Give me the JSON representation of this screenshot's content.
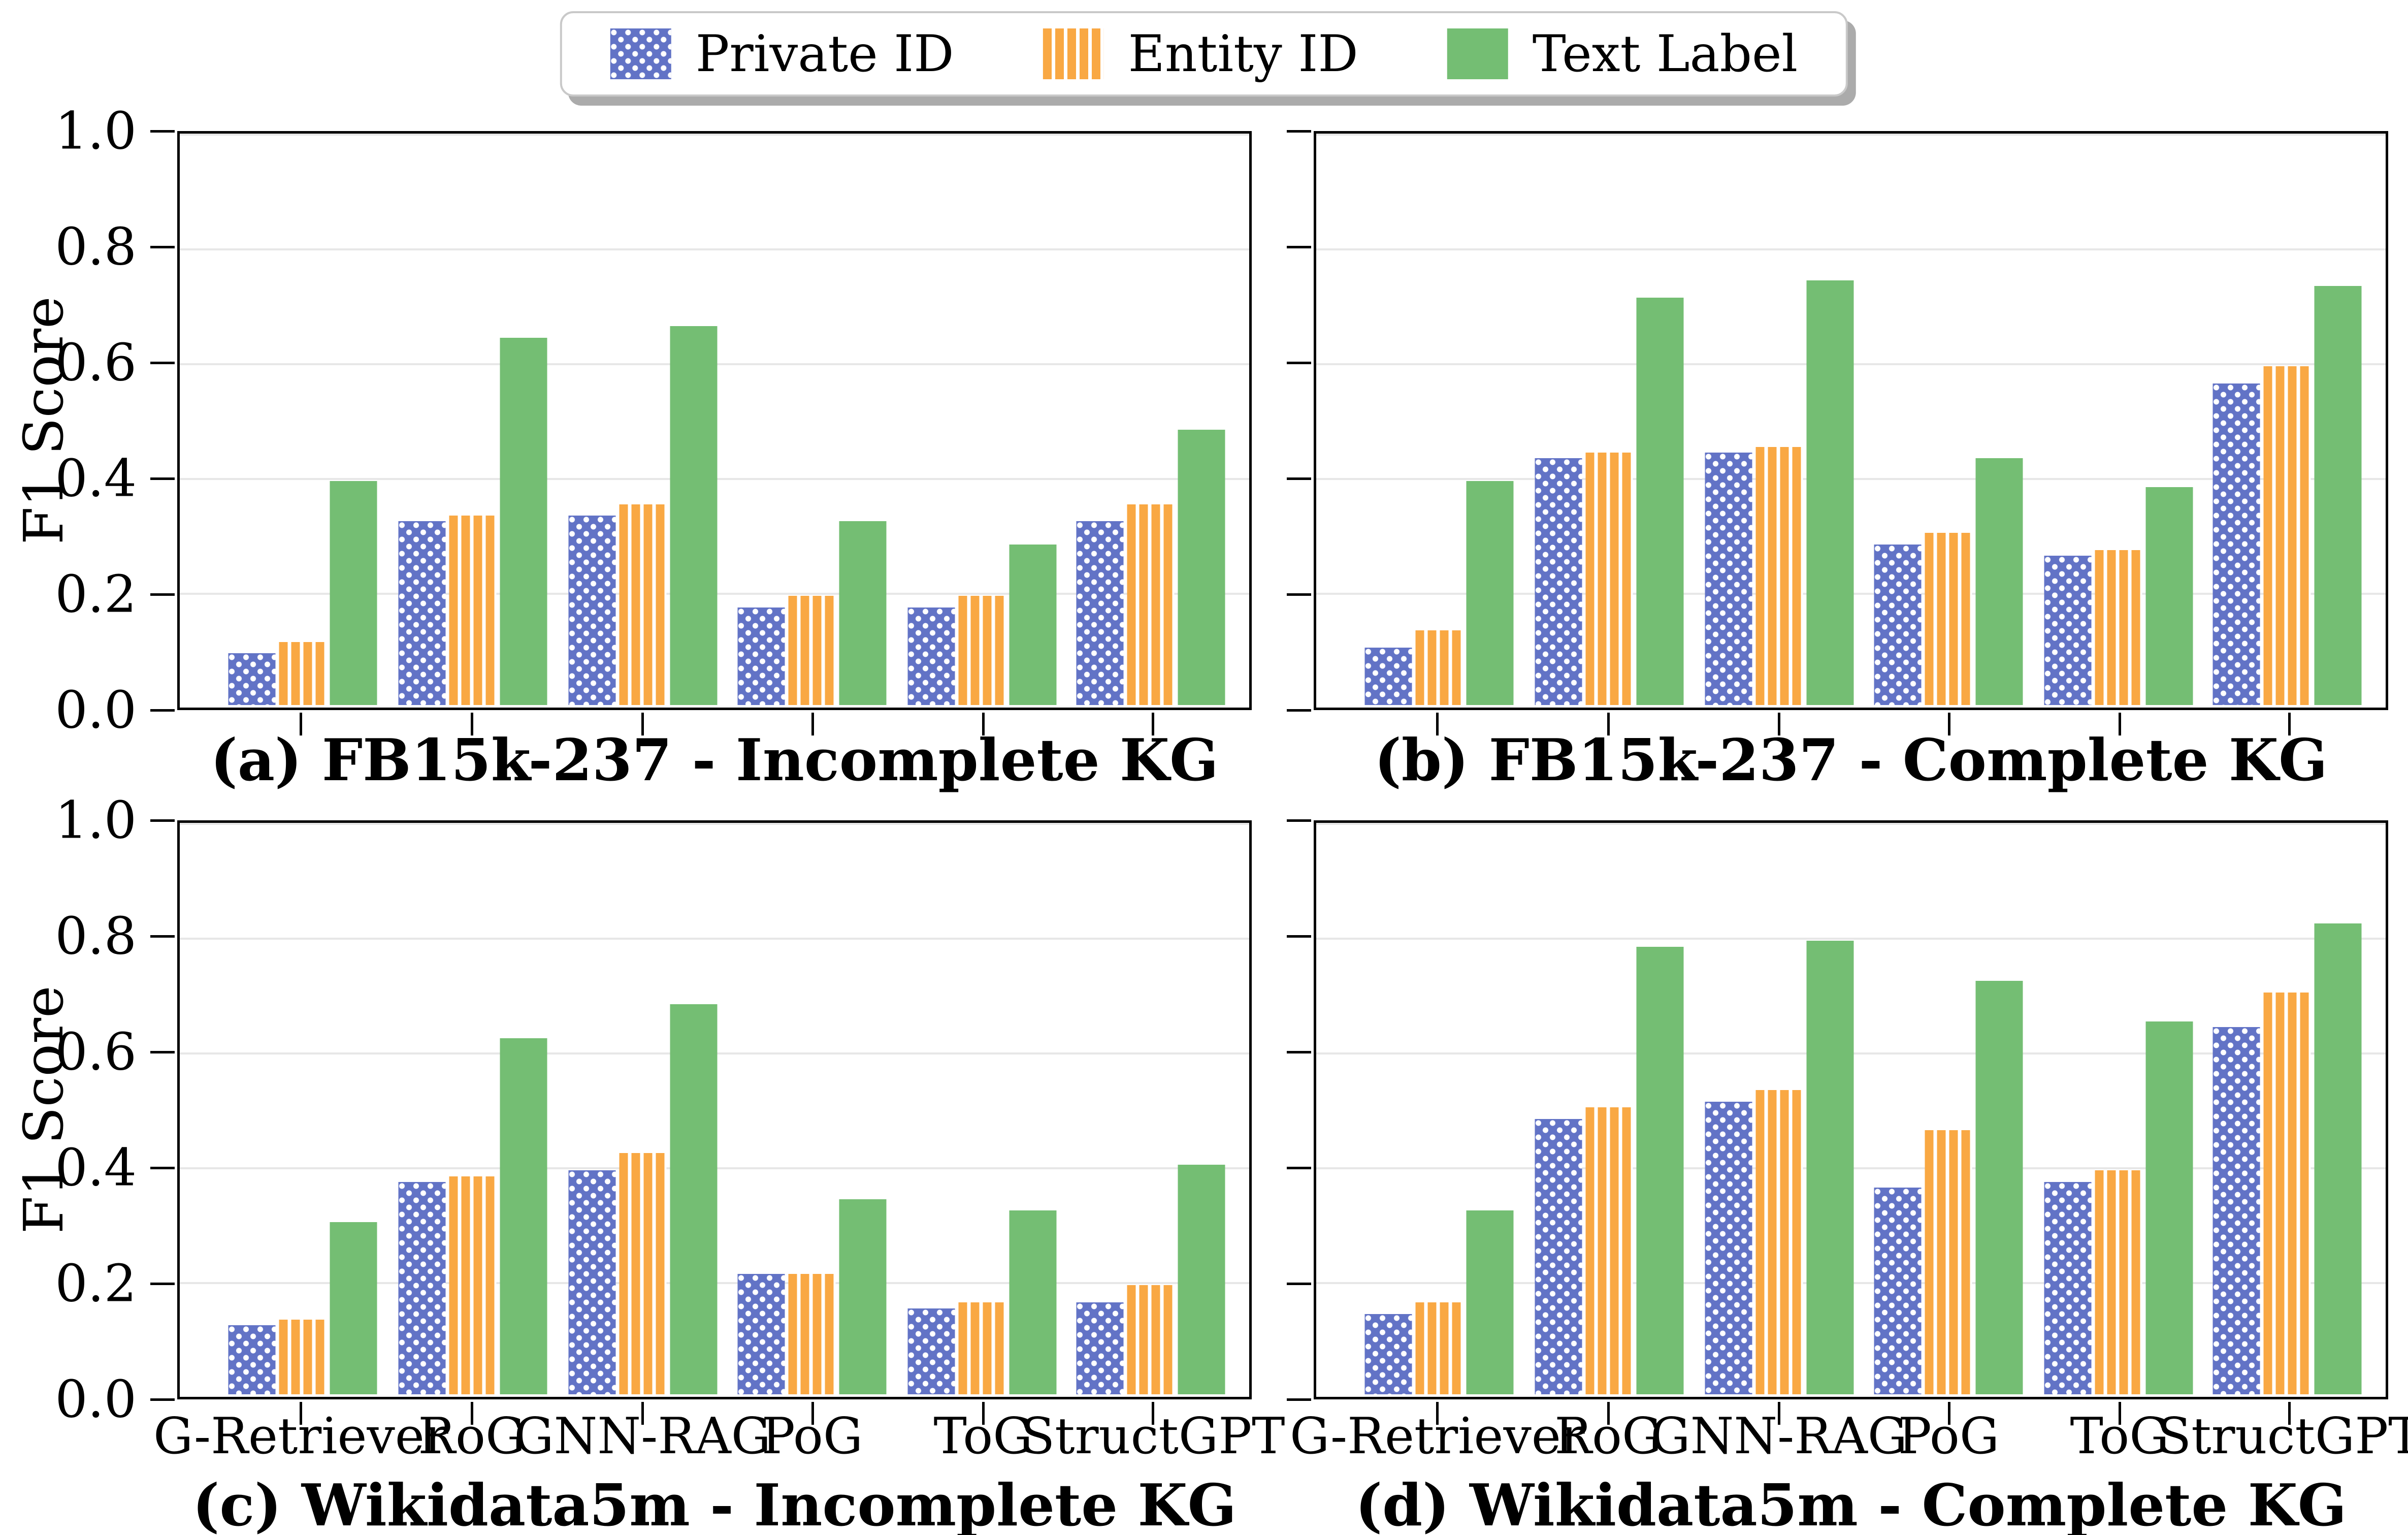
{
  "legend": {
    "position": "top-center",
    "items": [
      {
        "label": "Private ID",
        "series": "private_id",
        "swatch": "blue-dotted-swatch"
      },
      {
        "label": "Entity ID",
        "series": "entity_id",
        "swatch": "orange-striped-swatch"
      },
      {
        "label": "Text Label",
        "series": "text_label",
        "swatch": "green-solid-swatch"
      }
    ]
  },
  "colors": {
    "private_id": "#6273C6",
    "entity_id": "#F9A843",
    "text_label": "#74BE73",
    "gridline": "#E7E7E7",
    "axis": "#000000",
    "legend_border": "#C9C9C9"
  },
  "axes": {
    "ylabel": "F1 Score",
    "yticks": [
      "1.0",
      "0.8",
      "0.6",
      "0.4",
      "0.2",
      "0.0"
    ],
    "ylim": [
      0.0,
      1.0
    ],
    "grid": "horizontal"
  },
  "chart_data": [
    {
      "id": "a",
      "type": "bar",
      "title": "(a) FB15k-237 - Incomplete KG",
      "categories": [
        "G-Retriever",
        "RoG",
        "GNN-RAG",
        "PoG",
        "ToG",
        "StructGPT"
      ],
      "series": [
        {
          "name": "Private ID",
          "values": [
            0.09,
            0.32,
            0.33,
            0.17,
            0.17,
            0.32
          ]
        },
        {
          "name": "Entity ID",
          "values": [
            0.11,
            0.33,
            0.35,
            0.19,
            0.19,
            0.35
          ]
        },
        {
          "name": "Text Label",
          "values": [
            0.39,
            0.64,
            0.66,
            0.32,
            0.28,
            0.48
          ]
        }
      ],
      "ylabel": "F1 Score",
      "ylim": [
        0.0,
        1.0
      ],
      "show_xticklabels": false,
      "show_yticklabels": true
    },
    {
      "id": "b",
      "type": "bar",
      "title": "(b) FB15k-237 - Complete KG",
      "categories": [
        "G-Retriever",
        "RoG",
        "GNN-RAG",
        "PoG",
        "ToG",
        "StructGPT"
      ],
      "series": [
        {
          "name": "Private ID",
          "values": [
            0.1,
            0.43,
            0.44,
            0.28,
            0.26,
            0.56
          ]
        },
        {
          "name": "Entity ID",
          "values": [
            0.13,
            0.44,
            0.45,
            0.3,
            0.27,
            0.59
          ]
        },
        {
          "name": "Text Label",
          "values": [
            0.39,
            0.71,
            0.74,
            0.43,
            0.38,
            0.73
          ]
        }
      ],
      "ylabel": "",
      "ylim": [
        0.0,
        1.0
      ],
      "show_xticklabels": false,
      "show_yticklabels": false
    },
    {
      "id": "c",
      "type": "bar",
      "title": "(c) Wikidata5m - Incomplete KG",
      "categories": [
        "G-Retriever",
        "RoG",
        "GNN-RAG",
        "PoG",
        "ToG",
        "StructGPT"
      ],
      "series": [
        {
          "name": "Private ID",
          "values": [
            0.12,
            0.37,
            0.39,
            0.21,
            0.15,
            0.16
          ]
        },
        {
          "name": "Entity ID",
          "values": [
            0.13,
            0.38,
            0.42,
            0.21,
            0.16,
            0.19
          ]
        },
        {
          "name": "Text Label",
          "values": [
            0.3,
            0.62,
            0.68,
            0.34,
            0.32,
            0.4
          ]
        }
      ],
      "ylabel": "F1 Score",
      "ylim": [
        0.0,
        1.0
      ],
      "show_xticklabels": true,
      "show_yticklabels": true
    },
    {
      "id": "d",
      "type": "bar",
      "title": "(d) Wikidata5m - Complete KG",
      "categories": [
        "G-Retriever",
        "RoG",
        "GNN-RAG",
        "PoG",
        "ToG",
        "StructGPT"
      ],
      "series": [
        {
          "name": "Private ID",
          "values": [
            0.14,
            0.48,
            0.51,
            0.36,
            0.37,
            0.64
          ]
        },
        {
          "name": "Entity ID",
          "values": [
            0.16,
            0.5,
            0.53,
            0.46,
            0.39,
            0.7
          ]
        },
        {
          "name": "Text Label",
          "values": [
            0.32,
            0.78,
            0.79,
            0.72,
            0.65,
            0.82
          ]
        }
      ],
      "ylabel": "",
      "ylim": [
        0.0,
        1.0
      ],
      "show_xticklabels": true,
      "show_yticklabels": false
    }
  ]
}
